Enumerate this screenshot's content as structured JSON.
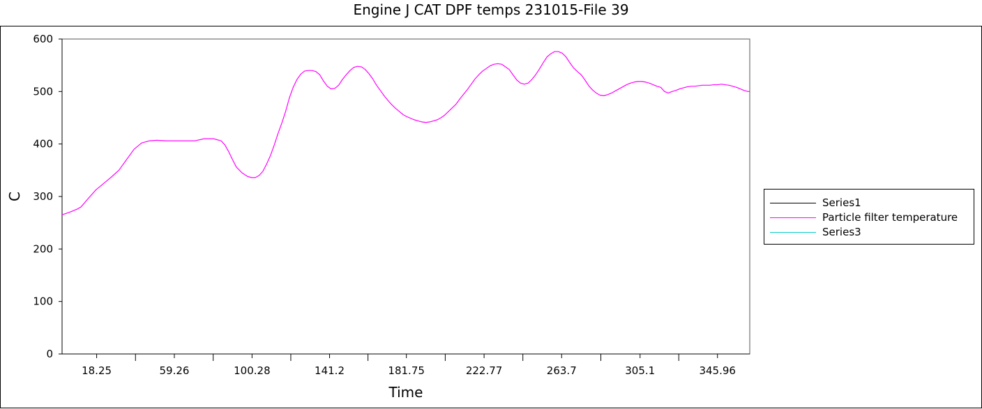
{
  "chart_data": {
    "type": "line",
    "title": "Engine J CAT DPF temps 231015-File 39",
    "xlabel": "Time",
    "ylabel": "C",
    "xlim": [
      0,
      363
    ],
    "ylim": [
      0,
      600
    ],
    "x_tick_labels": [
      "18.25",
      "59.26",
      "100.28",
      "141.2",
      "181.75",
      "222.77",
      "263.7",
      "305.1",
      "345.96"
    ],
    "x_tick_values": [
      18.25,
      59.26,
      100.28,
      141.2,
      181.75,
      222.77,
      263.7,
      305.1,
      345.96
    ],
    "y_ticks": [
      0,
      100,
      200,
      300,
      400,
      500,
      600
    ],
    "legend_position": "right",
    "grid": false,
    "series": [
      {
        "name": "Series1",
        "color": "#000000",
        "x": [],
        "y": []
      },
      {
        "name": "Particle filter temperature",
        "color": "#ff00ff",
        "x": [
          0,
          4,
          8,
          10,
          14,
          18,
          22,
          26,
          30,
          34,
          38,
          42,
          46,
          50,
          55,
          60,
          65,
          70,
          75,
          80,
          84,
          86,
          88,
          90,
          92,
          95,
          98,
          100,
          102,
          104,
          106,
          108,
          110,
          112,
          114,
          116,
          118,
          120,
          122,
          124,
          126,
          128,
          130,
          132,
          134,
          136,
          138,
          140,
          142,
          144,
          146,
          148,
          150,
          152,
          154,
          156,
          158,
          160,
          162,
          164,
          166,
          168,
          170,
          172,
          174,
          176,
          178,
          180,
          182,
          184,
          186,
          188,
          190,
          192,
          194,
          196,
          198,
          200,
          202,
          204,
          206,
          208,
          210,
          212,
          214,
          216,
          218,
          220,
          222,
          224,
          226,
          228,
          230,
          232,
          234,
          236,
          238,
          240,
          242,
          244,
          246,
          248,
          250,
          252,
          254,
          256,
          258,
          260,
          262,
          264,
          266,
          268,
          270,
          272,
          274,
          276,
          278,
          280,
          282,
          284,
          286,
          288,
          290,
          292,
          294,
          296,
          298,
          300,
          302,
          304,
          306,
          308,
          310,
          312,
          314,
          316,
          318,
          320,
          322,
          324,
          326,
          328,
          330,
          332,
          334,
          336,
          338,
          340,
          342,
          344,
          346,
          348,
          350,
          352,
          354,
          356,
          358,
          360,
          362,
          363
        ],
        "y": [
          265,
          270,
          276,
          280,
          297,
          313,
          325,
          337,
          350,
          370,
          390,
          402,
          406,
          407,
          406,
          406,
          406,
          406,
          410,
          410,
          406,
          398,
          385,
          370,
          356,
          345,
          338,
          336,
          336,
          340,
          348,
          362,
          378,
          398,
          420,
          440,
          462,
          488,
          508,
          523,
          533,
          539,
          540,
          540,
          538,
          532,
          520,
          510,
          505,
          506,
          512,
          523,
          532,
          540,
          546,
          548,
          547,
          542,
          534,
          524,
          512,
          502,
          492,
          483,
          475,
          468,
          462,
          456,
          452,
          449,
          446,
          444,
          442,
          441,
          442,
          444,
          446,
          450,
          455,
          462,
          469,
          476,
          486,
          495,
          504,
          514,
          524,
          532,
          539,
          544,
          549,
          552,
          553,
          552,
          547,
          542,
          532,
          522,
          516,
          514,
          516,
          523,
          532,
          543,
          555,
          566,
          572,
          576,
          576,
          573,
          566,
          555,
          545,
          538,
          532,
          522,
          511,
          503,
          497,
          493,
          492,
          494,
          497,
          501,
          505,
          509,
          513,
          516,
          518,
          519,
          519,
          518,
          516,
          513,
          510,
          508,
          500,
          497,
          500,
          502,
          505,
          507,
          509,
          510,
          510,
          511,
          512,
          512,
          512,
          513,
          513,
          514,
          513,
          512,
          510,
          508,
          505,
          502,
          500,
          500
        ]
      },
      {
        "name": "Series3",
        "color": "#00cccc",
        "x": [],
        "y": []
      }
    ]
  },
  "legend": {
    "items": [
      {
        "label": "Series1",
        "color": "#000000"
      },
      {
        "label": "Particle filter temperature",
        "color": "#ff00ff"
      },
      {
        "label": "Series3",
        "color": "#00cccc"
      }
    ]
  }
}
